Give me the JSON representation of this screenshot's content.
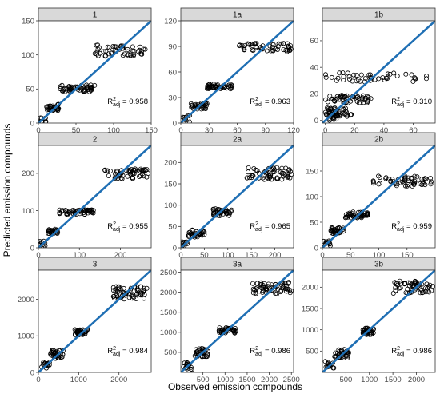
{
  "xlabel": "Observed emission compounds",
  "ylabel": "Predicted emission compounds",
  "colors": {
    "line": "#1f6fb4",
    "point_stroke": "#000000",
    "strip_fill": "#d9d9d9",
    "panel_border": "#333333"
  },
  "chart_data": [
    {
      "id": "1",
      "type": "scatter",
      "title": "1",
      "xlim": [
        0,
        150
      ],
      "ylim": [
        0,
        150
      ],
      "xticks": [
        0,
        50,
        100,
        150
      ],
      "yticks": [
        0,
        50,
        100,
        150
      ],
      "r2_label": "R",
      "r2_sup": "2",
      "r2_sub": "adj",
      "r2_value": "= 0.958",
      "line": "identity",
      "clusters": [
        {
          "x": [
            2,
            10
          ],
          "y": [
            1,
            9
          ],
          "n": 10
        },
        {
          "x": [
            10,
            27
          ],
          "y": [
            18,
            28
          ],
          "n": 30
        },
        {
          "x": [
            28,
            75
          ],
          "y": [
            46,
            56
          ],
          "n": 55
        },
        {
          "x": [
            75,
            145
          ],
          "y": [
            98,
            115
          ],
          "n": 55
        }
      ]
    },
    {
      "id": "1a",
      "type": "scatter",
      "title": "1a",
      "xlim": [
        0,
        120
      ],
      "ylim": [
        0,
        120
      ],
      "xticks": [
        0,
        30,
        60,
        90,
        120
      ],
      "yticks": [
        0,
        30,
        60,
        90,
        120
      ],
      "r2_label": "R",
      "r2_sup": "2",
      "r2_sub": "adj",
      "r2_value": "= 0.963",
      "line": "identity",
      "clusters": [
        {
          "x": [
            2,
            10
          ],
          "y": [
            1,
            9
          ],
          "n": 10
        },
        {
          "x": [
            10,
            28
          ],
          "y": [
            16,
            24
          ],
          "n": 30
        },
        {
          "x": [
            28,
            55
          ],
          "y": [
            40,
            46
          ],
          "n": 50
        },
        {
          "x": [
            62,
            118
          ],
          "y": [
            83,
            94
          ],
          "n": 55
        }
      ]
    },
    {
      "id": "1b",
      "type": "scatter",
      "title": "1b",
      "xlim": [
        -2,
        75
      ],
      "ylim": [
        -2,
        75
      ],
      "xticks": [
        0,
        20,
        40,
        60
      ],
      "yticks": [
        0,
        20,
        40,
        60
      ],
      "r2_label": "R",
      "r2_sup": "2",
      "r2_sub": "adj",
      "r2_value": "= 0.310",
      "line": "identity",
      "clusters": [
        {
          "x": [
            0,
            8
          ],
          "y": [
            0,
            6
          ],
          "n": 20
        },
        {
          "x": [
            0,
            18
          ],
          "y": [
            3,
            10
          ],
          "n": 45
        },
        {
          "x": [
            0,
            32
          ],
          "y": [
            13,
            19
          ],
          "n": 55
        },
        {
          "x": [
            0,
            70
          ],
          "y": [
            29,
            36
          ],
          "n": 45
        }
      ]
    },
    {
      "id": "2",
      "type": "scatter",
      "title": "2",
      "xlim": [
        0,
        275
      ],
      "ylim": [
        0,
        275
      ],
      "xticks": [
        0,
        100,
        200
      ],
      "yticks": [
        0,
        100,
        200
      ],
      "r2_label": "R",
      "r2_sup": "2",
      "r2_sub": "adj",
      "r2_value": "= 0.955",
      "line": "identity",
      "clusters": [
        {
          "x": [
            2,
            20
          ],
          "y": [
            1,
            18
          ],
          "n": 10
        },
        {
          "x": [
            20,
            48
          ],
          "y": [
            38,
            52
          ],
          "n": 30
        },
        {
          "x": [
            50,
            135
          ],
          "y": [
            90,
            102
          ],
          "n": 55
        },
        {
          "x": [
            160,
            270
          ],
          "y": [
            185,
            212
          ],
          "n": 55
        }
      ]
    },
    {
      "id": "2a",
      "type": "scatter",
      "title": "2a",
      "xlim": [
        0,
        240
      ],
      "ylim": [
        0,
        240
      ],
      "xticks": [
        0,
        50,
        100,
        150,
        200
      ],
      "yticks": [
        0,
        50,
        100,
        150,
        200
      ],
      "r2_label": "R",
      "r2_sup": "2",
      "r2_sub": "adj",
      "r2_value": "= 0.965",
      "line": "identity",
      "clusters": [
        {
          "x": [
            2,
            15
          ],
          "y": [
            1,
            14
          ],
          "n": 10
        },
        {
          "x": [
            15,
            52
          ],
          "y": [
            25,
            42
          ],
          "n": 35
        },
        {
          "x": [
            68,
            108
          ],
          "y": [
            75,
            92
          ],
          "n": 40
        },
        {
          "x": [
            140,
            235
          ],
          "y": [
            160,
            188
          ],
          "n": 60
        }
      ]
    },
    {
      "id": "2b",
      "type": "scatter",
      "title": "2b",
      "xlim": [
        0,
        200
      ],
      "ylim": [
        0,
        200
      ],
      "xticks": [
        0,
        50,
        100,
        150
      ],
      "yticks": [
        0,
        50,
        100,
        150
      ],
      "r2_label": "R",
      "r2_sup": "2",
      "r2_sub": "adj",
      "r2_value": "= 0.959",
      "line": "identity",
      "clusters": [
        {
          "x": [
            2,
            15
          ],
          "y": [
            1,
            14
          ],
          "n": 10
        },
        {
          "x": [
            15,
            38
          ],
          "y": [
            26,
            40
          ],
          "n": 30
        },
        {
          "x": [
            40,
            82
          ],
          "y": [
            58,
            70
          ],
          "n": 45
        },
        {
          "x": [
            90,
            195
          ],
          "y": [
            120,
            140
          ],
          "n": 55
        }
      ]
    },
    {
      "id": "3",
      "type": "scatter",
      "title": "3",
      "xlim": [
        0,
        2800
      ],
      "ylim": [
        0,
        2800
      ],
      "xticks": [
        0,
        1000,
        2000
      ],
      "yticks": [
        0,
        1000,
        2000
      ],
      "r2_label": "R",
      "r2_sup": "2",
      "r2_sub": "adj",
      "r2_value": "= 0.984",
      "line": "identity",
      "clusters": [
        {
          "x": [
            60,
            280
          ],
          "y": [
            80,
            280
          ],
          "n": 15
        },
        {
          "x": [
            300,
            620
          ],
          "y": [
            380,
            620
          ],
          "n": 35
        },
        {
          "x": [
            900,
            1220
          ],
          "y": [
            1020,
            1180
          ],
          "n": 35
        },
        {
          "x": [
            1850,
            2750
          ],
          "y": [
            2000,
            2350
          ],
          "n": 60
        }
      ]
    },
    {
      "id": "3a",
      "type": "scatter",
      "title": "3a",
      "xlim": [
        0,
        2550
      ],
      "ylim": [
        0,
        2550
      ],
      "xticks": [
        500,
        1000,
        1500,
        2000,
        2500
      ],
      "yticks": [
        500,
        1000,
        1500,
        2000,
        2500
      ],
      "r2_label": "R",
      "r2_sup": "2",
      "r2_sub": "adj",
      "r2_value": "= 0.986",
      "line": "identity",
      "clusters": [
        {
          "x": [
            60,
            280
          ],
          "y": [
            60,
            260
          ],
          "n": 15
        },
        {
          "x": [
            300,
            620
          ],
          "y": [
            380,
            600
          ],
          "n": 35
        },
        {
          "x": [
            850,
            1250
          ],
          "y": [
            980,
            1120
          ],
          "n": 40
        },
        {
          "x": [
            1600,
            2500
          ],
          "y": [
            1960,
            2250
          ],
          "n": 60
        }
      ]
    },
    {
      "id": "3b",
      "type": "scatter",
      "title": "3b",
      "xlim": [
        0,
        2400
      ],
      "ylim": [
        0,
        2400
      ],
      "xticks": [
        500,
        1000,
        1500,
        2000
      ],
      "yticks": [
        500,
        1000,
        1500,
        2000
      ],
      "r2_label": "R",
      "r2_sup": "2",
      "r2_sub": "adj",
      "r2_value": "= 0.986",
      "line": "identity",
      "clusters": [
        {
          "x": [
            60,
            260
          ],
          "y": [
            60,
            260
          ],
          "n": 15
        },
        {
          "x": [
            260,
            560
          ],
          "y": [
            320,
            540
          ],
          "n": 35
        },
        {
          "x": [
            850,
            1100
          ],
          "y": [
            880,
            1040
          ],
          "n": 35
        },
        {
          "x": [
            1500,
            2350
          ],
          "y": [
            1850,
            2150
          ],
          "n": 60
        }
      ]
    }
  ]
}
